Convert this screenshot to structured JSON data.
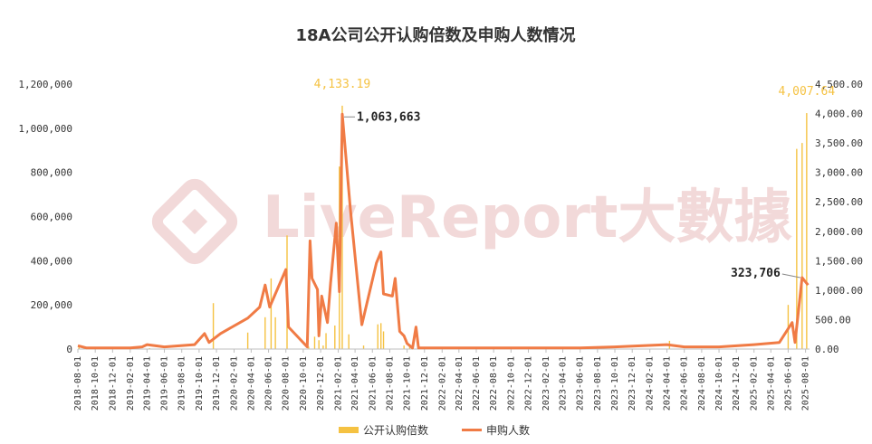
{
  "chart_data": {
    "type": "bar+line",
    "title": "18A公司公开认购倍数及申购人数情况",
    "watermark": "LiveReport大數據",
    "x_ticks": [
      "2018-08-01",
      "2018-10-01",
      "2018-12-01",
      "2019-02-01",
      "2019-04-01",
      "2019-06-01",
      "2019-08-01",
      "2019-10-01",
      "2019-12-01",
      "2020-02-01",
      "2020-04-01",
      "2020-06-01",
      "2020-08-01",
      "2020-10-01",
      "2020-12-01",
      "2021-02-01",
      "2021-04-01",
      "2021-06-01",
      "2021-08-01",
      "2021-10-01",
      "2021-12-01",
      "2022-02-01",
      "2022-04-01",
      "2022-06-01",
      "2022-08-01",
      "2022-10-01",
      "2022-12-01",
      "2023-02-01",
      "2023-04-01",
      "2023-06-01",
      "2023-08-01",
      "2023-10-01",
      "2023-12-01",
      "2024-02-01",
      "2024-04-01",
      "2024-06-01",
      "2024-08-01",
      "2024-10-01",
      "2024-12-01",
      "2025-02-01",
      "2025-04-01",
      "2025-06-01",
      "2025-08-01"
    ],
    "x_range": [
      "2018-08-01",
      "2025-08-15"
    ],
    "y_left": {
      "ticks": [
        "0",
        "200,000",
        "400,000",
        "600,000",
        "800,000",
        "1,000,000",
        "1,200,000"
      ],
      "range": [
        0,
        1200000
      ]
    },
    "y_right": {
      "ticks": [
        "0.00",
        "500.00",
        "1,000.00",
        "1,500.00",
        "2,000.00",
        "2,500.00",
        "3,000.00",
        "3,500.00",
        "4,000.00",
        "4,500.00"
      ],
      "range": [
        0,
        4500
      ]
    },
    "series": [
      {
        "name": "公开认购倍数",
        "type": "bar",
        "axis": "right",
        "color": "#f5c242",
        "points": [
          [
            "2018-08-05",
            30
          ],
          [
            "2019-04-10",
            15
          ],
          [
            "2019-11-20",
            780
          ],
          [
            "2020-03-20",
            280
          ],
          [
            "2020-05-20",
            540
          ],
          [
            "2020-06-10",
            1200
          ],
          [
            "2020-06-25",
            540
          ],
          [
            "2020-08-05",
            1930
          ],
          [
            "2020-10-20",
            40
          ],
          [
            "2020-11-10",
            210
          ],
          [
            "2020-11-25",
            150
          ],
          [
            "2020-12-10",
            60
          ],
          [
            "2020-12-20",
            270
          ],
          [
            "2021-01-20",
            400
          ],
          [
            "2021-02-05",
            3100
          ],
          [
            "2021-02-15",
            4133.19
          ],
          [
            "2021-03-10",
            250
          ],
          [
            "2021-05-01",
            60
          ],
          [
            "2021-06-20",
            420
          ],
          [
            "2021-07-01",
            440
          ],
          [
            "2021-07-10",
            300
          ],
          [
            "2021-09-20",
            60
          ],
          [
            "2021-10-10",
            40
          ],
          [
            "2024-04-10",
            140
          ],
          [
            "2025-06-01",
            750
          ],
          [
            "2025-07-01",
            3400
          ],
          [
            "2025-07-20",
            3500
          ],
          [
            "2025-08-05",
            4007.64
          ]
        ]
      },
      {
        "name": "申购人数",
        "type": "line",
        "axis": "left",
        "color": "#f07b45",
        "points": [
          [
            "2018-08-01",
            15000
          ],
          [
            "2018-09-01",
            5000
          ],
          [
            "2019-02-01",
            5000
          ],
          [
            "2019-03-15",
            10000
          ],
          [
            "2019-04-01",
            20000
          ],
          [
            "2019-06-01",
            10000
          ],
          [
            "2019-09-15",
            20000
          ],
          [
            "2019-10-20",
            70000
          ],
          [
            "2019-11-05",
            30000
          ],
          [
            "2019-12-15",
            70000
          ],
          [
            "2020-03-20",
            140000
          ],
          [
            "2020-05-01",
            190000
          ],
          [
            "2020-05-20",
            290000
          ],
          [
            "2020-06-05",
            190000
          ],
          [
            "2020-08-01",
            360000
          ],
          [
            "2020-08-10",
            100000
          ],
          [
            "2020-10-15",
            10000
          ],
          [
            "2020-10-25",
            490000
          ],
          [
            "2020-11-01",
            320000
          ],
          [
            "2020-11-20",
            270000
          ],
          [
            "2020-11-25",
            60000
          ],
          [
            "2020-12-05",
            240000
          ],
          [
            "2020-12-25",
            120000
          ],
          [
            "2021-01-05",
            300000
          ],
          [
            "2021-01-25",
            570000
          ],
          [
            "2021-02-05",
            260000
          ],
          [
            "2021-02-15",
            1063663
          ],
          [
            "2021-03-15",
            640000
          ],
          [
            "2021-04-25",
            110000
          ],
          [
            "2021-06-15",
            390000
          ],
          [
            "2021-07-01",
            440000
          ],
          [
            "2021-07-10",
            250000
          ],
          [
            "2021-08-10",
            240000
          ],
          [
            "2021-08-20",
            320000
          ],
          [
            "2021-09-05",
            80000
          ],
          [
            "2021-09-20",
            60000
          ],
          [
            "2021-10-01",
            25000
          ],
          [
            "2021-10-20",
            5000
          ],
          [
            "2021-11-01",
            100000
          ],
          [
            "2021-11-10",
            5000
          ],
          [
            "2021-12-01",
            5000
          ],
          [
            "2022-01-01",
            5000
          ],
          [
            "2022-08-01",
            5000
          ],
          [
            "2023-06-01",
            5000
          ],
          [
            "2023-10-01",
            10000
          ],
          [
            "2024-04-01",
            20000
          ],
          [
            "2024-06-01",
            10000
          ],
          [
            "2024-10-01",
            10000
          ],
          [
            "2025-02-01",
            20000
          ],
          [
            "2025-05-01",
            30000
          ],
          [
            "2025-06-15",
            120000
          ],
          [
            "2025-06-25",
            30000
          ],
          [
            "2025-07-20",
            323706
          ],
          [
            "2025-08-10",
            290000
          ]
        ]
      }
    ],
    "annotations": [
      {
        "text": "4,133.19",
        "series": "公开认购倍数",
        "date": "2021-02-15",
        "value": 4133.19,
        "style": "gold"
      },
      {
        "text": "1,063,663",
        "series": "申购人数",
        "date": "2021-02-15",
        "value": 1063663,
        "style": "dark",
        "side": "right"
      },
      {
        "text": "4,007.64",
        "series": "公开认购倍数",
        "date": "2025-08-05",
        "value": 4007.64,
        "style": "gold"
      },
      {
        "text": "323,706",
        "series": "申购人数",
        "date": "2025-07-20",
        "value": 323706,
        "style": "dark",
        "side": "left"
      }
    ],
    "legend": {
      "position": "bottom",
      "items": [
        {
          "label": "公开认购倍数",
          "color": "#f5c242",
          "shape": "rect"
        },
        {
          "label": "申购人数",
          "color": "#f07b45",
          "shape": "line"
        }
      ]
    },
    "grid": false
  }
}
